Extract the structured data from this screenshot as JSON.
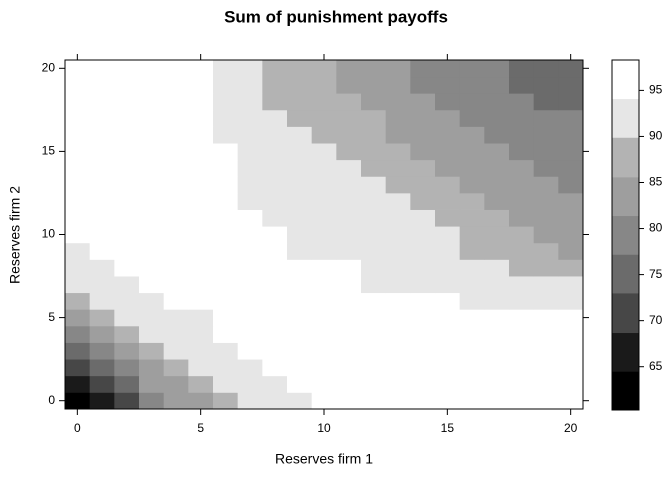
{
  "chart_data": {
    "type": "heatmap",
    "title": "Sum of punishment payoffs",
    "x_label": "Reserves firm 1",
    "y_label": "Reserves firm 2",
    "x": [
      0,
      1,
      2,
      3,
      4,
      5,
      6,
      7,
      8,
      9,
      10,
      11,
      12,
      13,
      14,
      15,
      16,
      17,
      18,
      19,
      20
    ],
    "y": [
      0,
      1,
      2,
      3,
      4,
      5,
      6,
      7,
      8,
      9,
      10,
      11,
      12,
      13,
      14,
      15,
      16,
      17,
      18,
      19,
      20
    ],
    "xlim": [
      -0.5,
      20.5
    ],
    "ylim": [
      -0.5,
      20.5
    ],
    "xticks": [
      0,
      5,
      10,
      15,
      20
    ],
    "yticks": [
      0,
      5,
      10,
      15,
      20
    ],
    "z": [
      [
        62.4,
        66.6,
        70.9,
        79.3,
        83.5,
        83.5,
        87.8,
        92,
        92,
        92,
        96.2,
        96.2,
        96.2,
        96.2,
        96.2,
        96.2,
        96.2,
        96.2,
        96.2,
        96.2,
        96.2
      ],
      [
        66.6,
        70.9,
        75.1,
        83.5,
        83.5,
        87.8,
        92,
        92,
        92,
        96.2,
        96.2,
        96.2,
        96.2,
        96.2,
        96.2,
        96.2,
        96.2,
        96.2,
        96.2,
        96.2,
        96.2
      ],
      [
        70.9,
        75.1,
        79.3,
        83.5,
        87.8,
        92,
        92,
        92,
        96.2,
        96.2,
        96.2,
        96.2,
        96.2,
        96.2,
        96.2,
        96.2,
        96.2,
        96.2,
        96.2,
        96.2,
        96.2
      ],
      [
        75.1,
        79.3,
        83.5,
        87.8,
        92,
        92,
        92,
        96.2,
        96.2,
        96.2,
        96.2,
        96.2,
        96.2,
        96.2,
        96.2,
        96.2,
        96.2,
        96.2,
        96.2,
        96.2,
        96.2
      ],
      [
        79.3,
        83.5,
        87.8,
        92,
        92,
        92,
        96.2,
        96.2,
        96.2,
        96.2,
        96.2,
        96.2,
        96.2,
        96.2,
        96.2,
        96.2,
        96.2,
        96.2,
        96.2,
        96.2,
        96.2
      ],
      [
        83.5,
        87.8,
        92,
        92,
        92,
        92,
        96.2,
        96.2,
        96.2,
        96.2,
        96.2,
        96.2,
        96.2,
        96.2,
        96.2,
        96.2,
        96.2,
        96.2,
        96.2,
        96.2,
        96.2
      ],
      [
        87.8,
        92,
        92,
        92,
        96.2,
        96.2,
        96.2,
        96.2,
        96.2,
        96.2,
        96.2,
        96.2,
        96.2,
        96.2,
        96.2,
        96.2,
        92,
        92,
        92,
        92,
        92
      ],
      [
        92,
        92,
        92,
        96.2,
        96.2,
        96.2,
        96.2,
        96.2,
        96.2,
        96.2,
        96.2,
        96.2,
        92,
        92,
        92,
        92,
        92,
        92,
        92,
        92,
        92
      ],
      [
        92,
        92,
        96.2,
        96.2,
        96.2,
        96.2,
        96.2,
        96.2,
        96.2,
        96.2,
        96.2,
        96.2,
        92,
        92,
        92,
        92,
        92,
        92,
        87.8,
        87.8,
        87.8
      ],
      [
        92,
        96.2,
        96.2,
        96.2,
        96.2,
        96.2,
        96.2,
        96.2,
        96.2,
        92,
        92,
        92,
        92,
        92,
        92,
        92,
        87.8,
        87.8,
        87.8,
        87.8,
        83.5
      ],
      [
        96.2,
        96.2,
        96.2,
        96.2,
        96.2,
        96.2,
        96.2,
        96.2,
        96.2,
        92,
        92,
        92,
        92,
        92,
        92,
        92,
        87.8,
        87.8,
        87.8,
        83.5,
        83.5
      ],
      [
        96.2,
        96.2,
        96.2,
        96.2,
        96.2,
        96.2,
        96.2,
        96.2,
        92,
        92,
        92,
        92,
        92,
        92,
        92,
        87.8,
        87.8,
        87.8,
        83.5,
        83.5,
        83.5
      ],
      [
        96.2,
        96.2,
        96.2,
        96.2,
        96.2,
        96.2,
        96.2,
        92,
        92,
        92,
        92,
        92,
        92,
        92,
        87.8,
        87.8,
        87.8,
        83.5,
        83.5,
        83.5,
        83.5
      ],
      [
        96.2,
        96.2,
        96.2,
        96.2,
        96.2,
        96.2,
        96.2,
        92,
        92,
        92,
        92,
        92,
        92,
        87.8,
        87.8,
        87.8,
        83.5,
        83.5,
        83.5,
        83.5,
        79.3
      ],
      [
        96.2,
        96.2,
        96.2,
        96.2,
        96.2,
        96.2,
        96.2,
        92,
        92,
        92,
        92,
        92,
        87.8,
        87.8,
        87.8,
        83.5,
        83.5,
        83.5,
        83.5,
        79.3,
        79.3
      ],
      [
        96.2,
        96.2,
        96.2,
        96.2,
        96.2,
        96.2,
        96.2,
        92,
        92,
        92,
        92,
        87.8,
        87.8,
        87.8,
        83.5,
        83.5,
        83.5,
        83.5,
        79.3,
        79.3,
        79.3
      ],
      [
        96.2,
        96.2,
        96.2,
        96.2,
        96.2,
        96.2,
        92,
        92,
        92,
        92,
        87.8,
        87.8,
        87.8,
        83.5,
        83.5,
        83.5,
        83.5,
        79.3,
        79.3,
        79.3,
        79.3
      ],
      [
        96.2,
        96.2,
        96.2,
        96.2,
        96.2,
        96.2,
        92,
        92,
        92,
        87.8,
        87.8,
        87.8,
        87.8,
        83.5,
        83.5,
        83.5,
        79.3,
        79.3,
        79.3,
        79.3,
        79.3
      ],
      [
        96.2,
        96.2,
        96.2,
        96.2,
        96.2,
        96.2,
        92,
        92,
        87.8,
        87.8,
        87.8,
        87.8,
        83.5,
        83.5,
        83.5,
        79.3,
        79.3,
        79.3,
        79.3,
        75.1,
        75.1
      ],
      [
        96.2,
        96.2,
        96.2,
        96.2,
        96.2,
        96.2,
        92,
        92,
        87.8,
        87.8,
        87.8,
        83.5,
        83.5,
        83.5,
        79.3,
        79.3,
        79.3,
        79.3,
        75.1,
        75.1,
        75.1
      ],
      [
        96.2,
        96.2,
        96.2,
        96.2,
        96.2,
        96.2,
        92,
        92,
        87.8,
        87.8,
        87.8,
        83.5,
        83.5,
        83.5,
        79.3,
        79.3,
        79.3,
        79.3,
        75.1,
        75.1,
        75.1
      ]
    ],
    "colorbar": {
      "breaks": [
        60.3,
        64.5,
        68.7,
        73.0,
        77.2,
        81.4,
        85.6,
        89.9,
        94.1,
        98.3
      ],
      "colors": [
        "#000000",
        "#1a1a1a",
        "#474747",
        "#6b6b6b",
        "#878787",
        "#9e9e9e",
        "#b3b3b3",
        "#e6e6e6",
        "#ffffff"
      ],
      "ticks": [
        65,
        70,
        75,
        80,
        85,
        90,
        95
      ]
    }
  }
}
